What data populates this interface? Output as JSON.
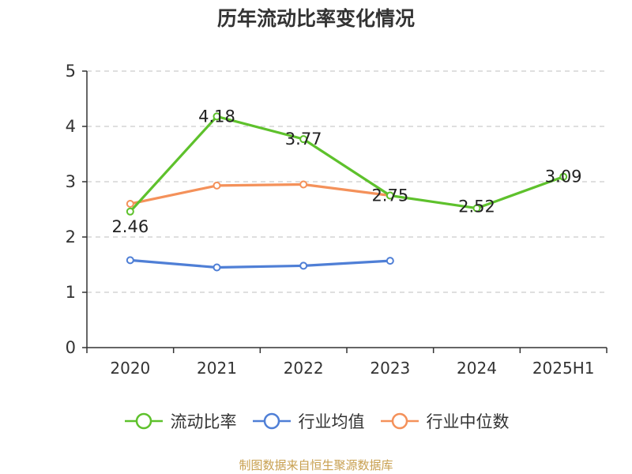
{
  "title": "历年流动比率变化情况",
  "source": "制图数据来自恒生聚源数据库",
  "chart_data": {
    "type": "line",
    "categories": [
      "2020",
      "2021",
      "2022",
      "2023",
      "2024",
      "2025H1"
    ],
    "ylim": [
      0,
      5
    ],
    "yticks": [
      0,
      1,
      2,
      3,
      4,
      5
    ],
    "grid": true,
    "legend_position": "bottom",
    "series": [
      {
        "name": "流动比率",
        "color": "#5ec12c",
        "values": [
          2.46,
          4.18,
          3.77,
          2.75,
          2.52,
          3.09
        ],
        "labels": [
          "2.46",
          "4.18",
          "3.77",
          "2.75",
          "2.52",
          "3.09"
        ]
      },
      {
        "name": "行业均值",
        "color": "#4f7fd6",
        "values": [
          1.58,
          1.45,
          1.48,
          1.57,
          null,
          null
        ]
      },
      {
        "name": "行业中位数",
        "color": "#f4915a",
        "values": [
          2.6,
          2.93,
          2.95,
          2.75,
          null,
          null
        ]
      }
    ]
  }
}
